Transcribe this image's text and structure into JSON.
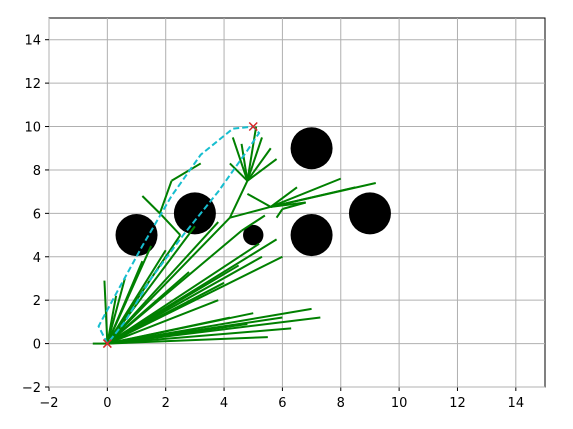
{
  "chart_data": {
    "type": "rrt",
    "xlim": [
      -2,
      15
    ],
    "ylim": [
      -2,
      15
    ],
    "xticks": [
      {
        "value": -2,
        "label": "−2"
      },
      0,
      2,
      4,
      6,
      8,
      10,
      12,
      14
    ],
    "yticks": [
      {
        "value": -2,
        "label": "−2"
      },
      0,
      2,
      4,
      6,
      8,
      10,
      12,
      14
    ],
    "grid": true,
    "obstacles": {
      "color": "#000000",
      "x": [
        1,
        3,
        7,
        7,
        9,
        5
      ],
      "y": [
        5,
        6,
        5,
        9,
        6,
        5
      ],
      "r": [
        0.72,
        0.72,
        0.72,
        0.72,
        0.72,
        0.35
      ]
    },
    "tree": {
      "color": "#008000",
      "edges": [
        [
          0,
          0,
          -0.1,
          2.9
        ],
        [
          0,
          0,
          0.3,
          2.2
        ],
        [
          0,
          0,
          0.6,
          3
        ],
        [
          0,
          0,
          1.2,
          3.8
        ],
        [
          0,
          0,
          1.5,
          4.5
        ],
        [
          0,
          0,
          2,
          4.3
        ],
        [
          0,
          0,
          2.5,
          5
        ],
        [
          0,
          0,
          3,
          5.4
        ],
        [
          0,
          0,
          3.8,
          5.6
        ],
        [
          0,
          0,
          4.2,
          5.8
        ],
        [
          0,
          0,
          4.6,
          5.2
        ],
        [
          0,
          0,
          5.2,
          4.6
        ],
        [
          0,
          0,
          5.8,
          4.8
        ],
        [
          0,
          0,
          6,
          4
        ],
        [
          0,
          0,
          5.3,
          4
        ],
        [
          0,
          0,
          4.5,
          3.6
        ],
        [
          0,
          0,
          4,
          2.8
        ],
        [
          0,
          0,
          3.8,
          2
        ],
        [
          0,
          0,
          4.2,
          1.2
        ],
        [
          0,
          0,
          5,
          1.4
        ],
        [
          0,
          0,
          6,
          1.2
        ],
        [
          0,
          0,
          7,
          1.6
        ],
        [
          0,
          0,
          7.3,
          1.2
        ],
        [
          0,
          0,
          6.3,
          0.7
        ],
        [
          0,
          0,
          5.5,
          0.3
        ],
        [
          0,
          0,
          3,
          0.6
        ],
        [
          0,
          0,
          4.8,
          0.9
        ],
        [
          0,
          0,
          -0.5,
          0
        ],
        [
          0,
          0,
          2.8,
          3.3
        ],
        [
          2.5,
          5,
          1.8,
          6
        ],
        [
          1.8,
          6,
          1.2,
          6.8
        ],
        [
          1.8,
          6,
          2.2,
          7.5
        ],
        [
          2.2,
          7.5,
          3.2,
          8.3
        ],
        [
          4.2,
          5.8,
          4.8,
          7.5
        ],
        [
          4.8,
          7.5,
          4.3,
          9.5
        ],
        [
          4.8,
          7.5,
          4.6,
          9.2
        ],
        [
          4.8,
          7.5,
          5.3,
          9.5
        ],
        [
          4.8,
          7.5,
          5.6,
          9
        ],
        [
          4.8,
          7.5,
          5.8,
          8.5
        ],
        [
          4.8,
          7.5,
          4.2,
          8.3
        ],
        [
          4.8,
          7.5,
          5.1,
          10
        ],
        [
          4.2,
          5.8,
          5.6,
          6.3
        ],
        [
          5.6,
          6.3,
          6.5,
          7.2
        ],
        [
          5.6,
          6.3,
          8,
          7.6
        ],
        [
          5.6,
          6.3,
          9.2,
          7.4
        ],
        [
          5.6,
          6.3,
          8.5,
          7.2
        ],
        [
          5.6,
          6.3,
          6.8,
          6.5
        ],
        [
          6.8,
          6.5,
          6,
          6.2
        ],
        [
          6,
          6.2,
          5.8,
          5.8
        ],
        [
          5.6,
          6.3,
          4.8,
          6.9
        ],
        [
          4.6,
          5.2,
          5.4,
          5.9
        ]
      ]
    },
    "path": {
      "color": "#17becf",
      "x": [
        0,
        -0.3,
        0.3,
        1.2,
        2.2,
        3.2,
        4.3,
        5,
        5.2,
        4.8,
        3.8,
        2.6,
        1.5,
        0.6,
        0
      ],
      "y": [
        0,
        0.8,
        2.3,
        4.5,
        6.8,
        8.7,
        9.9,
        10,
        9.7,
        8.9,
        7,
        5,
        3,
        1,
        0
      ]
    },
    "markers": {
      "color": "#d62728",
      "x": [
        0,
        5
      ],
      "y": [
        0,
        10
      ]
    }
  }
}
